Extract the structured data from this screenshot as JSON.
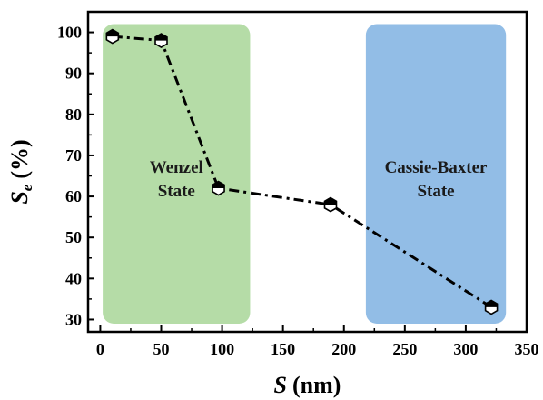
{
  "chart_data": {
    "type": "line",
    "xlabel": {
      "main": "S",
      "unit": "(nm)"
    },
    "ylabel": {
      "main": "S",
      "sub": "e",
      "unit": "(%)"
    },
    "xlim": [
      -10,
      350
    ],
    "ylim": [
      27,
      105
    ],
    "xticks": [
      0,
      50,
      100,
      150,
      200,
      250,
      300,
      350
    ],
    "yticks": [
      30,
      40,
      50,
      60,
      70,
      80,
      90,
      100
    ],
    "grid": false,
    "legend": false,
    "line_style": "dash-dot",
    "marker": "half-filled-hexagon",
    "series": [
      {
        "x": [
          10,
          50,
          97,
          189,
          321
        ],
        "y": [
          99,
          98,
          62,
          58,
          33
        ]
      }
    ],
    "regions": [
      {
        "lines": [
          "Wenzel",
          "State"
        ],
        "x_range": [
          2,
          123
        ],
        "y_range": [
          29,
          102
        ],
        "color": "#b5dca7"
      },
      {
        "lines": [
          "Cassie-Baxter",
          "State"
        ],
        "x_range": [
          218,
          333
        ],
        "y_range": [
          29,
          102
        ],
        "color": "#92bde6"
      }
    ]
  }
}
